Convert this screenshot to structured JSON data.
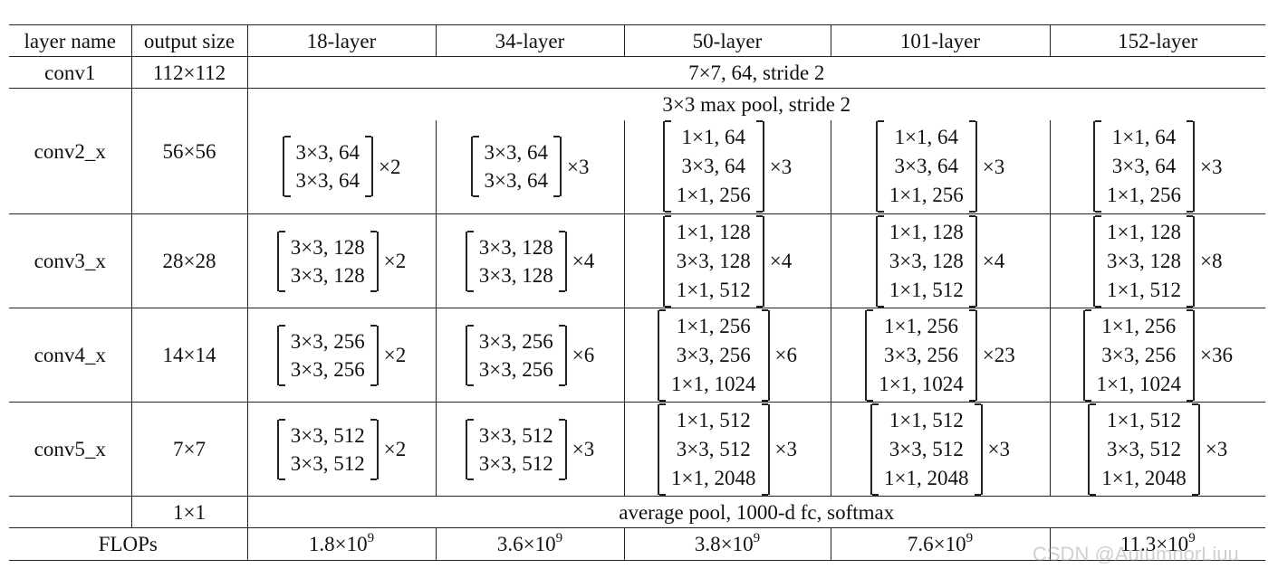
{
  "headers": [
    "layer name",
    "output size",
    "18-layer",
    "34-layer",
    "50-layer",
    "101-layer",
    "152-layer"
  ],
  "conv1": {
    "name": "conv1",
    "size": "112×112",
    "spec": "7×7, 64, stride 2"
  },
  "conv2_pool": "3×3 max pool, stride 2",
  "blocks": [
    {
      "name": "conv2_x",
      "size": "56×56",
      "cells": [
        {
          "lines": [
            "3×3, 64",
            "3×3, 64"
          ],
          "rep": "×2"
        },
        {
          "lines": [
            "3×3, 64",
            "3×3, 64"
          ],
          "rep": "×3"
        },
        {
          "lines": [
            "1×1, 64",
            "3×3, 64",
            "1×1, 256"
          ],
          "rep": "×3"
        },
        {
          "lines": [
            "1×1, 64",
            "3×3, 64",
            "1×1, 256"
          ],
          "rep": "×3"
        },
        {
          "lines": [
            "1×1, 64",
            "3×3, 64",
            "1×1, 256"
          ],
          "rep": "×3"
        }
      ]
    },
    {
      "name": "conv3_x",
      "size": "28×28",
      "cells": [
        {
          "lines": [
            "3×3, 128",
            "3×3, 128"
          ],
          "rep": "×2"
        },
        {
          "lines": [
            "3×3, 128",
            "3×3, 128"
          ],
          "rep": "×4"
        },
        {
          "lines": [
            "1×1, 128",
            "3×3, 128",
            "1×1, 512"
          ],
          "rep": "×4"
        },
        {
          "lines": [
            "1×1, 128",
            "3×3, 128",
            "1×1, 512"
          ],
          "rep": "×4"
        },
        {
          "lines": [
            "1×1, 128",
            "3×3, 128",
            "1×1, 512"
          ],
          "rep": "×8"
        }
      ]
    },
    {
      "name": "conv4_x",
      "size": "14×14",
      "cells": [
        {
          "lines": [
            "3×3, 256",
            "3×3, 256"
          ],
          "rep": "×2"
        },
        {
          "lines": [
            "3×3, 256",
            "3×3, 256"
          ],
          "rep": "×6"
        },
        {
          "lines": [
            "1×1, 256",
            "3×3, 256",
            "1×1, 1024"
          ],
          "rep": "×6"
        },
        {
          "lines": [
            "1×1, 256",
            "3×3, 256",
            "1×1, 1024"
          ],
          "rep": "×23"
        },
        {
          "lines": [
            "1×1, 256",
            "3×3, 256",
            "1×1, 1024"
          ],
          "rep": "×36"
        }
      ]
    },
    {
      "name": "conv5_x",
      "size": "7×7",
      "cells": [
        {
          "lines": [
            "3×3, 512",
            "3×3, 512"
          ],
          "rep": "×2"
        },
        {
          "lines": [
            "3×3, 512",
            "3×3, 512"
          ],
          "rep": "×3"
        },
        {
          "lines": [
            "1×1, 512",
            "3×3, 512",
            "1×1, 2048"
          ],
          "rep": "×3"
        },
        {
          "lines": [
            "1×1, 512",
            "3×3, 512",
            "1×1, 2048"
          ],
          "rep": "×3"
        },
        {
          "lines": [
            "1×1, 512",
            "3×3, 512",
            "1×1, 2048"
          ],
          "rep": "×3"
        }
      ]
    }
  ],
  "final": {
    "size": "1×1",
    "spec": "average pool, 1000-d fc, softmax"
  },
  "flops": {
    "label": "FLOPs",
    "values": [
      {
        "mantissa": "1.8×10",
        "exp": "9"
      },
      {
        "mantissa": "3.6×10",
        "exp": "9"
      },
      {
        "mantissa": "3.8×10",
        "exp": "9"
      },
      {
        "mantissa": "7.6×10",
        "exp": "9"
      },
      {
        "mantissa": "11.3×10",
        "exp": "9"
      }
    ]
  },
  "watermark": "CSDN @AutumnorLiuu"
}
